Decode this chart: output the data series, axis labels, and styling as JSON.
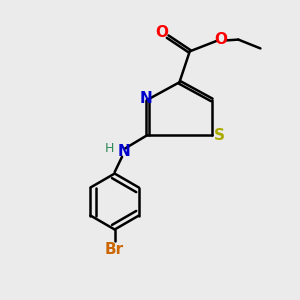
{
  "bg_color": "#ebebeb",
  "bond_color": "#000000",
  "bond_lw": 1.8,
  "atom_colors": {
    "O": "#ff0000",
    "N": "#0000cd",
    "S": "#aaaa00",
    "Br": "#cc6600",
    "H_N": "#2e8b57",
    "C": "#000000"
  },
  "font_size_atom": 11,
  "font_size_br": 11,
  "font_size_h": 9
}
